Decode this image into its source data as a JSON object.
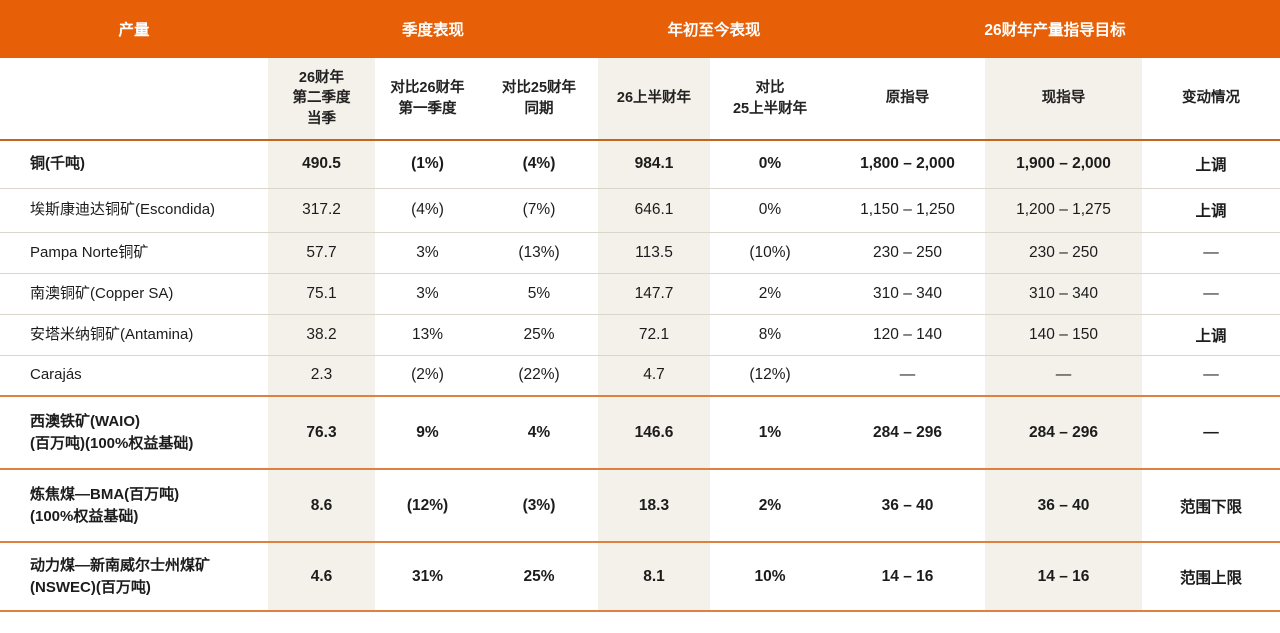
{
  "header_band": {
    "groups": [
      {
        "label": "产量"
      },
      {
        "label": "季度表现"
      },
      {
        "label": "年初至今表现"
      },
      {
        "label": "26财年产量指导目标"
      }
    ]
  },
  "columns": [
    "26财年\n第二季度\n当季",
    "对比26财年\n第一季度",
    "对比25财年\n同期",
    "26上半财年",
    "对比\n25上半财年",
    "原指导",
    "现指导",
    "变动情况"
  ],
  "rows": [
    {
      "label": "铜(千吨)",
      "emphasis": true,
      "section_start": false,
      "values": [
        "490.5",
        "(1%)",
        "(4%)",
        "984.1",
        "0%",
        "1,800 – 2,000",
        "1,900 – 2,000",
        "上调"
      ]
    },
    {
      "label": "埃斯康迪达铜矿(Escondida)",
      "emphasis": false,
      "section_start": false,
      "values": [
        "317.2",
        "(4%)",
        "(7%)",
        "646.1",
        "0%",
        "1,150 – 1,250",
        "1,200 – 1,275",
        "上调"
      ]
    },
    {
      "label": "Pampa Norte铜矿",
      "emphasis": false,
      "section_start": false,
      "values": [
        "57.7",
        "3%",
        "(13%)",
        "113.5",
        "(10%)",
        "230 – 250",
        "230 – 250",
        "—"
      ]
    },
    {
      "label": "南澳铜矿(Copper SA)",
      "emphasis": false,
      "section_start": false,
      "values": [
        "75.1",
        "3%",
        "5%",
        "147.7",
        "2%",
        "310 – 340",
        "310 – 340",
        "—"
      ]
    },
    {
      "label": "安塔米纳铜矿(Antamina)",
      "emphasis": false,
      "section_start": false,
      "values": [
        "38.2",
        "13%",
        "25%",
        "72.1",
        "8%",
        "120 – 140",
        "140 – 150",
        "上调"
      ]
    },
    {
      "label": "Carajás",
      "emphasis": false,
      "section_start": false,
      "values": [
        "2.3",
        "(2%)",
        "(22%)",
        "4.7",
        "(12%)",
        "—",
        "—",
        "—"
      ]
    },
    {
      "label": "西澳铁矿(WAIO)\n(百万吨)(100%权益基础)",
      "emphasis": true,
      "section_start": true,
      "values": [
        "76.3",
        "9%",
        "4%",
        "146.6",
        "1%",
        "284 – 296",
        "284 – 296",
        "—"
      ]
    },
    {
      "label": "炼焦煤—BMA(百万吨)\n(100%权益基础)",
      "emphasis": true,
      "section_start": true,
      "values": [
        "8.6",
        "(12%)",
        "(3%)",
        "18.3",
        "2%",
        "36 – 40",
        "36 – 40",
        "范围下限"
      ]
    },
    {
      "label": "动力煤—新南威尔士州煤矿\n(NSWEC)(百万吨)",
      "emphasis": true,
      "section_start": true,
      "values": [
        "4.6",
        "31%",
        "25%",
        "8.1",
        "10%",
        "14 – 16",
        "14 – 16",
        "范围上限"
      ]
    }
  ],
  "colors": {
    "band_orange": "#E75F06",
    "shaded_column": "#F4F1EB",
    "header_rule": "#C4651E",
    "section_rule": "#DE8040",
    "row_rule": "#DBD6CC",
    "text": "#1C1C1C"
  }
}
